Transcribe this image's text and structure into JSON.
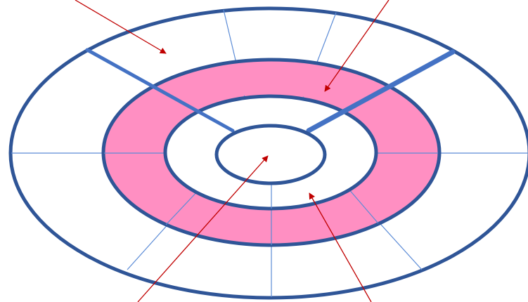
{
  "diagram": {
    "colors": {
      "background": "#ffffff",
      "ring_outline": "#2f5597",
      "heavy_divider": "#4472c4",
      "thin_divider": "#5b8bd6",
      "highlight_fill": "#ff8fc2",
      "plain_fill": "#ffffff",
      "arrow": "#c00000"
    },
    "regions": [
      {
        "id": "outer-ring",
        "fill": "plain"
      },
      {
        "id": "highlighted-ring",
        "fill": "highlight"
      },
      {
        "id": "inner-ring",
        "fill": "plain"
      },
      {
        "id": "center-ellipse",
        "fill": "plain"
      }
    ],
    "arrows": [
      {
        "id": "arrow-outer-ring",
        "target": "outer-ring"
      },
      {
        "id": "arrow-highlighted-ring",
        "target": "highlighted-ring"
      },
      {
        "id": "arrow-center",
        "target": "center-ellipse"
      },
      {
        "id": "arrow-inner-ring",
        "target": "inner-ring"
      }
    ]
  }
}
